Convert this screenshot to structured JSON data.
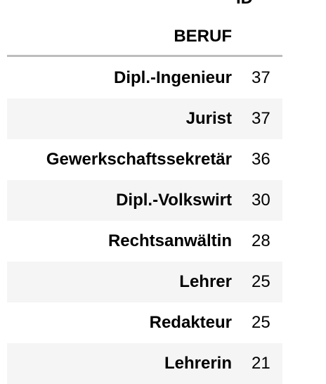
{
  "table": {
    "index_name": "ID",
    "row_label_header": "BERUF",
    "rows": [
      {
        "label": "Dipl.-Ingenieur",
        "value": "37"
      },
      {
        "label": "Jurist",
        "value": "37"
      },
      {
        "label": "Gewerkschaftssekretär",
        "value": "36"
      },
      {
        "label": "Dipl.-Volkswirt",
        "value": "30"
      },
      {
        "label": "Rechtsanwältin",
        "value": "28"
      },
      {
        "label": "Lehrer",
        "value": "25"
      },
      {
        "label": "Redakteur",
        "value": "25"
      },
      {
        "label": "Lehrerin",
        "value": "21"
      }
    ]
  },
  "colors": {
    "stripe": "#f5f5f5",
    "rule": "#bdbdbd",
    "text": "#000000"
  }
}
